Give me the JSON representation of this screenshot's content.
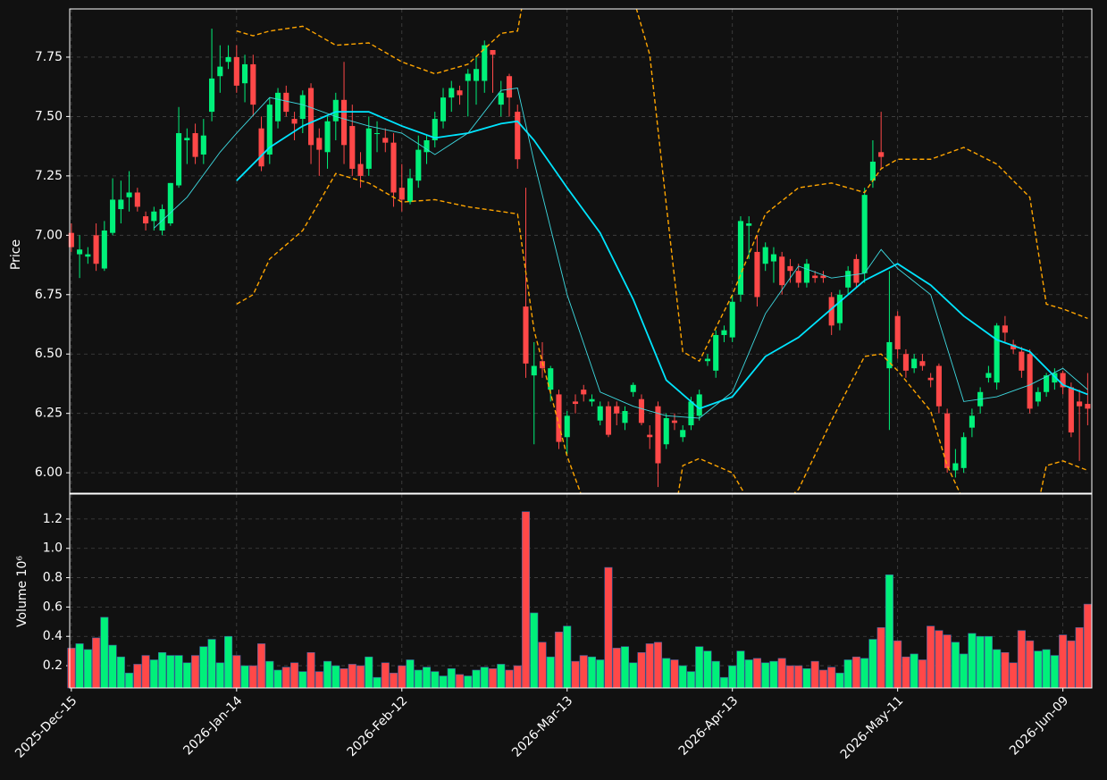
{
  "chart_data": {
    "type": "candlestick",
    "ylabel": "Price",
    "xlim": [
      -0.2,
      123.5
    ],
    "xticks": [
      {
        "value": 0,
        "label": "2025-Dec-15"
      },
      {
        "value": 20,
        "label": "2026-Jan-14"
      },
      {
        "value": 40,
        "label": "2026-Feb-12"
      },
      {
        "value": 60,
        "label": "2026-Mar-13"
      },
      {
        "value": 80,
        "label": "2026-Apr-13"
      },
      {
        "value": 100,
        "label": "2026-May-11"
      },
      {
        "value": 120,
        "label": "2026-Jun-09"
      }
    ],
    "ylim": [
      5.914,
      7.953
    ],
    "yticks": [
      {
        "value": 6.0,
        "label": "6.00"
      },
      {
        "value": 6.25,
        "label": "6.25"
      },
      {
        "value": 6.5,
        "label": "6.50"
      },
      {
        "value": 6.75,
        "label": "6.75"
      },
      {
        "value": 7.0,
        "label": "7.00"
      },
      {
        "value": 7.25,
        "label": "7.25"
      },
      {
        "value": 7.5,
        "label": "7.50"
      },
      {
        "value": 7.75,
        "label": "7.75"
      }
    ],
    "grid": true,
    "up_color": "#00f07a",
    "down_color": "#ff4848",
    "open": [
      7.01,
      6.92,
      6.91,
      7.0,
      6.86,
      7.01,
      7.11,
      7.16,
      7.18,
      7.08,
      7.06,
      7.02,
      7.05,
      7.21,
      7.4,
      7.43,
      7.34,
      7.52,
      7.67,
      7.73,
      7.75,
      7.64,
      7.72,
      7.45,
      7.34,
      7.48,
      7.6,
      7.49,
      7.49,
      7.62,
      7.41,
      7.35,
      7.48,
      7.57,
      7.46,
      7.3,
      7.28,
      7.43,
      7.41,
      7.39,
      7.2,
      7.14,
      7.23,
      7.35,
      7.4,
      7.48,
      7.58,
      7.61,
      7.65,
      7.65,
      7.65,
      7.78,
      7.55,
      7.67,
      7.52,
      6.7,
      6.41,
      6.47,
      6.35,
      6.33,
      6.15,
      6.3,
      6.35,
      6.3,
      6.22,
      6.28,
      6.28,
      6.21,
      6.34,
      6.31,
      6.16,
      6.28,
      6.12,
      6.22,
      6.15,
      6.2,
      6.24,
      6.47,
      6.43,
      6.58,
      6.57,
      6.75,
      7.04,
      6.93,
      6.88,
      6.89,
      6.91,
      6.87,
      6.85,
      6.8,
      6.83,
      6.83,
      6.74,
      6.63,
      6.78,
      6.9,
      6.84,
      7.23,
      7.35,
      6.44,
      6.66,
      6.5,
      6.44,
      6.47,
      6.4,
      6.45,
      6.25,
      6.01,
      6.02,
      6.19,
      6.28,
      6.4,
      6.38,
      6.62,
      6.54,
      6.51,
      6.5,
      6.3,
      6.34,
      6.38,
      6.42,
      6.36,
      6.3,
      6.29
    ],
    "high": [
      7.05,
      7.0,
      6.95,
      7.05,
      7.06,
      7.24,
      7.23,
      7.27,
      7.2,
      7.1,
      7.12,
      7.13,
      7.22,
      7.54,
      7.45,
      7.47,
      7.49,
      7.87,
      7.8,
      7.8,
      7.8,
      7.76,
      7.76,
      7.5,
      7.58,
      7.62,
      7.63,
      7.52,
      7.61,
      7.64,
      7.45,
      7.5,
      7.6,
      7.73,
      7.55,
      7.35,
      7.5,
      7.48,
      7.45,
      7.43,
      7.3,
      7.28,
      7.42,
      7.42,
      7.52,
      7.62,
      7.65,
      7.63,
      7.7,
      7.75,
      7.82,
      7.78,
      7.65,
      7.68,
      7.55,
      7.2,
      6.55,
      6.55,
      6.45,
      6.35,
      6.26,
      6.33,
      6.37,
      6.33,
      6.3,
      6.3,
      6.3,
      6.28,
      6.38,
      6.33,
      6.2,
      6.3,
      6.25,
      6.25,
      6.2,
      6.32,
      6.35,
      6.5,
      6.6,
      6.62,
      6.75,
      7.08,
      7.08,
      7.0,
      6.97,
      6.95,
      6.93,
      6.9,
      6.88,
      6.9,
      6.85,
      6.85,
      6.76,
      6.77,
      6.87,
      6.92,
      7.2,
      7.4,
      7.52,
      6.85,
      6.68,
      6.52,
      6.5,
      6.5,
      6.42,
      6.46,
      6.27,
      6.1,
      6.17,
      6.27,
      6.36,
      6.45,
      6.63,
      6.66,
      6.56,
      6.53,
      6.52,
      6.36,
      6.42,
      6.44,
      6.43,
      6.38,
      6.35,
      6.42
    ],
    "low": [
      6.93,
      6.82,
      6.88,
      6.85,
      6.85,
      7.0,
      7.05,
      7.1,
      7.1,
      7.02,
      7.02,
      7.0,
      7.04,
      7.2,
      7.3,
      7.3,
      7.3,
      7.48,
      7.6,
      7.7,
      7.6,
      7.56,
      7.5,
      7.27,
      7.3,
      7.45,
      7.5,
      7.4,
      7.43,
      7.3,
      7.25,
      7.28,
      7.4,
      7.3,
      7.25,
      7.2,
      7.25,
      7.35,
      7.35,
      7.12,
      7.1,
      7.13,
      7.2,
      7.3,
      7.37,
      7.45,
      7.52,
      7.55,
      7.5,
      7.55,
      7.6,
      7.6,
      7.5,
      7.5,
      7.28,
      6.4,
      6.12,
      6.4,
      6.3,
      6.1,
      6.08,
      6.25,
      6.3,
      6.28,
      6.2,
      6.15,
      6.2,
      6.18,
      6.32,
      6.2,
      6.1,
      5.94,
      6.1,
      6.18,
      6.13,
      6.18,
      6.22,
      6.45,
      6.4,
      6.55,
      6.55,
      6.72,
      6.9,
      6.7,
      6.85,
      6.8,
      6.75,
      6.8,
      6.78,
      6.78,
      6.8,
      6.8,
      6.58,
      6.6,
      6.75,
      6.78,
      6.8,
      7.2,
      7.28,
      6.18,
      6.48,
      6.4,
      6.42,
      6.43,
      6.36,
      6.25,
      6.0,
      5.98,
      6.0,
      6.15,
      6.25,
      6.38,
      6.35,
      6.55,
      6.5,
      6.4,
      6.25,
      6.28,
      6.32,
      6.35,
      6.33,
      6.15,
      6.05,
      6.2
    ],
    "close": [
      6.95,
      6.94,
      6.92,
      6.88,
      7.02,
      7.15,
      7.15,
      7.18,
      7.12,
      7.05,
      7.1,
      7.11,
      7.22,
      7.43,
      7.41,
      7.33,
      7.42,
      7.66,
      7.71,
      7.75,
      7.63,
      7.72,
      7.55,
      7.29,
      7.55,
      7.6,
      7.52,
      7.47,
      7.59,
      7.38,
      7.36,
      7.48,
      7.57,
      7.38,
      7.28,
      7.25,
      7.45,
      7.43,
      7.39,
      7.18,
      7.15,
      7.24,
      7.36,
      7.4,
      7.49,
      7.58,
      7.62,
      7.59,
      7.68,
      7.7,
      7.8,
      7.76,
      7.6,
      7.58,
      7.32,
      6.46,
      6.45,
      6.44,
      6.44,
      6.13,
      6.24,
      6.29,
      6.33,
      6.31,
      6.28,
      6.16,
      6.25,
      6.26,
      6.37,
      6.21,
      6.15,
      6.04,
      6.23,
      6.21,
      6.18,
      6.3,
      6.33,
      6.48,
      6.58,
      6.6,
      6.72,
      7.06,
      7.05,
      6.74,
      6.95,
      6.92,
      6.79,
      6.85,
      6.8,
      6.88,
      6.82,
      6.82,
      6.62,
      6.75,
      6.85,
      6.8,
      7.17,
      7.31,
      7.33,
      6.55,
      6.52,
      6.43,
      6.48,
      6.45,
      6.39,
      6.28,
      6.02,
      6.04,
      6.15,
      6.24,
      6.34,
      6.42,
      6.62,
      6.59,
      6.52,
      6.43,
      6.27,
      6.34,
      6.41,
      6.42,
      6.36,
      6.17,
      6.28,
      6.27
    ],
    "overlays": [
      {
        "color": "#00e5ff",
        "width": 1.8,
        "dash": false,
        "x": [
          20,
          24,
          28,
          32,
          36,
          40,
          44,
          48,
          52,
          54,
          56,
          60,
          64,
          68,
          72,
          76,
          80,
          84,
          88,
          92,
          96,
          100,
          104,
          108,
          112,
          116,
          120,
          123
        ],
        "values": [
          7.23,
          7.37,
          7.46,
          7.52,
          7.52,
          7.46,
          7.41,
          7.43,
          7.47,
          7.48,
          7.4,
          7.2,
          7.01,
          6.73,
          6.39,
          6.27,
          6.32,
          6.49,
          6.57,
          6.69,
          6.81,
          6.88,
          6.79,
          6.66,
          6.56,
          6.51,
          6.37,
          6.33
        ]
      },
      {
        "color": "#3dd9e0",
        "width": 0.9,
        "dash": false,
        "x": [
          10,
          14,
          18,
          20,
          24,
          28,
          32,
          36,
          40,
          44,
          48,
          52,
          54,
          56,
          60,
          64,
          68,
          72,
          76,
          80,
          84,
          88,
          92,
          96,
          98,
          100,
          104,
          108,
          112,
          116,
          120,
          123
        ],
        "values": [
          7.03,
          7.16,
          7.35,
          7.43,
          7.58,
          7.55,
          7.5,
          7.46,
          7.43,
          7.34,
          7.43,
          7.61,
          7.62,
          7.31,
          6.75,
          6.34,
          6.28,
          6.24,
          6.23,
          6.34,
          6.67,
          6.87,
          6.82,
          6.84,
          6.94,
          6.86,
          6.75,
          6.3,
          6.32,
          6.37,
          6.44,
          6.35
        ]
      },
      {
        "color": "#ffa500",
        "width": 1.4,
        "dash": true,
        "x": [
          20,
          22,
          24,
          28,
          32,
          36,
          40,
          44,
          48,
          52,
          54,
          55,
          56,
          60,
          64,
          68,
          70,
          72,
          74,
          76,
          80,
          84,
          88,
          92,
          96,
          98,
          100,
          104,
          108,
          112,
          116,
          118,
          120,
          123
        ],
        "values": [
          7.86,
          7.84,
          7.86,
          7.88,
          7.8,
          7.81,
          7.73,
          7.68,
          7.72,
          7.85,
          7.86,
          8.05,
          8.2,
          8.5,
          8.4,
          8.0,
          7.76,
          7.13,
          6.51,
          6.47,
          6.75,
          7.09,
          7.2,
          7.22,
          7.18,
          7.28,
          7.32,
          7.32,
          7.37,
          7.3,
          7.16,
          6.71,
          6.69,
          6.65
        ]
      },
      {
        "color": "#ffa500",
        "width": 1.4,
        "dash": true,
        "x": [
          20,
          22,
          24,
          28,
          32,
          36,
          40,
          44,
          48,
          52,
          54,
          56,
          60,
          62,
          64,
          68,
          72,
          74,
          76,
          80,
          82,
          84,
          88,
          92,
          96,
          98,
          100,
          104,
          106,
          108,
          112,
          116,
          118,
          120,
          123
        ],
        "values": [
          6.71,
          6.75,
          6.9,
          7.02,
          7.26,
          7.22,
          7.14,
          7.15,
          7.12,
          7.1,
          7.09,
          6.6,
          6.07,
          5.88,
          5.75,
          5.6,
          5.6,
          6.03,
          6.06,
          6.0,
          5.88,
          5.8,
          5.93,
          6.22,
          6.49,
          6.5,
          6.43,
          6.26,
          6.03,
          5.88,
          5.7,
          5.7,
          6.03,
          6.05,
          6.01
        ]
      }
    ],
    "volume": {
      "label": "Volume  10⁶",
      "ylim": [
        0.048,
        1.37
      ],
      "yticks": [
        0.2,
        0.4,
        0.6,
        0.8,
        {
          "value": 1.0,
          "label": "1.0"
        },
        1.2
      ],
      "values": [
        0.32,
        0.35,
        0.31,
        0.39,
        0.53,
        0.34,
        0.26,
        0.15,
        0.21,
        0.27,
        0.24,
        0.29,
        0.27,
        0.27,
        0.22,
        0.27,
        0.33,
        0.38,
        0.22,
        0.4,
        0.27,
        0.2,
        0.2,
        0.35,
        0.23,
        0.17,
        0.19,
        0.22,
        0.16,
        0.29,
        0.16,
        0.23,
        0.2,
        0.18,
        0.21,
        0.2,
        0.26,
        0.12,
        0.22,
        0.15,
        0.2,
        0.24,
        0.17,
        0.19,
        0.16,
        0.13,
        0.18,
        0.14,
        0.13,
        0.17,
        0.19,
        0.18,
        0.21,
        0.17,
        0.2,
        1.25,
        0.56,
        0.36,
        0.26,
        0.43,
        0.47,
        0.23,
        0.27,
        0.26,
        0.24,
        0.87,
        0.32,
        0.33,
        0.22,
        0.29,
        0.35,
        0.36,
        0.25,
        0.24,
        0.2,
        0.16,
        0.33,
        0.3,
        0.23,
        0.12,
        0.2,
        0.3,
        0.24,
        0.25,
        0.22,
        0.23,
        0.25,
        0.2,
        0.2,
        0.18,
        0.23,
        0.17,
        0.19,
        0.15,
        0.24,
        0.26,
        0.25,
        0.38,
        0.46,
        0.82,
        0.37,
        0.26,
        0.28,
        0.24,
        0.47,
        0.44,
        0.41,
        0.36,
        0.28,
        0.42,
        0.4,
        0.4,
        0.31,
        0.29,
        0.22,
        0.44,
        0.37,
        0.3,
        0.31,
        0.27,
        0.41,
        0.37,
        0.46,
        0.62
      ]
    }
  }
}
